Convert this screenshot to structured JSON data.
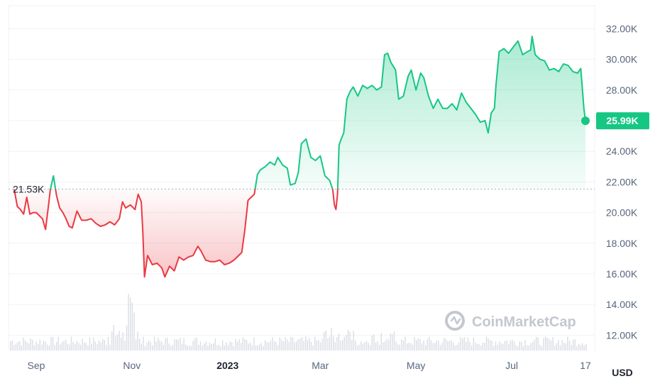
{
  "chart_data": {
    "type": "area",
    "currency": "USD",
    "reference_label": "21.53K",
    "reference_value": 21530,
    "last_label": "25.99K",
    "last_value": 25990,
    "up_color": "#16c784",
    "down_color": "#ea3943",
    "ylim": [
      11000,
      33500
    ],
    "y_ticks": [
      {
        "value": 12000,
        "label": "12.00K"
      },
      {
        "value": 14000,
        "label": "14.00K"
      },
      {
        "value": 16000,
        "label": "16.00K"
      },
      {
        "value": 18000,
        "label": "18.00K"
      },
      {
        "value": 20000,
        "label": "20.00K"
      },
      {
        "value": 22000,
        "label": "22.00K"
      },
      {
        "value": 24000,
        "label": "24.00K"
      },
      {
        "value": 26000,
        "label": "26.00K"
      },
      {
        "value": 28000,
        "label": "28.00K"
      },
      {
        "value": 30000,
        "label": "30.00K"
      },
      {
        "value": 32000,
        "label": "32.00K"
      }
    ],
    "x_ticks": [
      {
        "date": "2022-09-01",
        "label": "Sep",
        "bold": false
      },
      {
        "date": "2022-11-01",
        "label": "Nov",
        "bold": false
      },
      {
        "date": "2023-01-01",
        "label": "2023",
        "bold": true
      },
      {
        "date": "2023-03-01",
        "label": "Mar",
        "bold": false
      },
      {
        "date": "2023-05-01",
        "label": "May",
        "bold": false
      },
      {
        "date": "2023-07-01",
        "label": "Jul",
        "bold": false
      },
      {
        "date": "2023-08-17",
        "label": "17",
        "bold": false
      }
    ],
    "x": [
      "2022-08-18",
      "2022-08-20",
      "2022-08-22",
      "2022-08-24",
      "2022-08-26",
      "2022-08-28",
      "2022-08-30",
      "2022-09-01",
      "2022-09-03",
      "2022-09-05",
      "2022-09-07",
      "2022-09-09",
      "2022-09-10",
      "2022-09-12",
      "2022-09-14",
      "2022-09-16",
      "2022-09-18",
      "2022-09-20",
      "2022-09-22",
      "2022-09-24",
      "2022-09-27",
      "2022-09-30",
      "2022-10-03",
      "2022-10-06",
      "2022-10-09",
      "2022-10-12",
      "2022-10-15",
      "2022-10-18",
      "2022-10-21",
      "2022-10-24",
      "2022-10-26",
      "2022-10-28",
      "2022-10-31",
      "2022-11-03",
      "2022-11-05",
      "2022-11-07",
      "2022-11-08",
      "2022-11-09",
      "2022-11-11",
      "2022-11-14",
      "2022-11-17",
      "2022-11-20",
      "2022-11-22",
      "2022-11-25",
      "2022-11-28",
      "2022-12-01",
      "2022-12-04",
      "2022-12-07",
      "2022-12-10",
      "2022-12-13",
      "2022-12-15",
      "2022-12-18",
      "2022-12-21",
      "2022-12-24",
      "2022-12-27",
      "2022-12-30",
      "2023-01-02",
      "2023-01-05",
      "2023-01-08",
      "2023-01-10",
      "2023-01-12",
      "2023-01-14",
      "2023-01-16",
      "2023-01-18",
      "2023-01-20",
      "2023-01-22",
      "2023-01-25",
      "2023-01-28",
      "2023-01-31",
      "2023-02-02",
      "2023-02-05",
      "2023-02-08",
      "2023-02-10",
      "2023-02-13",
      "2023-02-15",
      "2023-02-17",
      "2023-02-20",
      "2023-02-23",
      "2023-02-26",
      "2023-03-01",
      "2023-03-04",
      "2023-03-07",
      "2023-03-09",
      "2023-03-10",
      "2023-03-11",
      "2023-03-12",
      "2023-03-13",
      "2023-03-14",
      "2023-03-16",
      "2023-03-18",
      "2023-03-20",
      "2023-03-22",
      "2023-03-25",
      "2023-03-28",
      "2023-03-31",
      "2023-04-03",
      "2023-04-06",
      "2023-04-09",
      "2023-04-11",
      "2023-04-13",
      "2023-04-15",
      "2023-04-18",
      "2023-04-20",
      "2023-04-23",
      "2023-04-26",
      "2023-04-28",
      "2023-05-01",
      "2023-05-04",
      "2023-05-06",
      "2023-05-09",
      "2023-05-12",
      "2023-05-15",
      "2023-05-18",
      "2023-05-21",
      "2023-05-24",
      "2023-05-27",
      "2023-05-30",
      "2023-06-02",
      "2023-06-05",
      "2023-06-08",
      "2023-06-11",
      "2023-06-14",
      "2023-06-16",
      "2023-06-18",
      "2023-06-20",
      "2023-06-21",
      "2023-06-23",
      "2023-06-26",
      "2023-06-29",
      "2023-07-02",
      "2023-07-05",
      "2023-07-08",
      "2023-07-11",
      "2023-07-13",
      "2023-07-14",
      "2023-07-16",
      "2023-07-19",
      "2023-07-22",
      "2023-07-25",
      "2023-07-28",
      "2023-07-31",
      "2023-08-03",
      "2023-08-06",
      "2023-08-09",
      "2023-08-12",
      "2023-08-14",
      "2023-08-16",
      "2023-08-17"
    ],
    "values": [
      21530,
      20400,
      20200,
      19900,
      21000,
      19900,
      20000,
      20000,
      19800,
      19600,
      18900,
      20600,
      21500,
      22400,
      21100,
      20300,
      20000,
      19600,
      19100,
      19000,
      20100,
      19500,
      19500,
      19600,
      19300,
      19100,
      19200,
      19400,
      19200,
      19600,
      20700,
      20300,
      20500,
      20200,
      21200,
      20700,
      18700,
      15800,
      17200,
      16600,
      16700,
      16400,
      15800,
      16500,
      16200,
      17100,
      16900,
      17100,
      17200,
      17800,
      17500,
      16900,
      16800,
      16800,
      16900,
      16600,
      16700,
      16900,
      17200,
      17400,
      18900,
      20800,
      21000,
      21200,
      22500,
      22800,
      23000,
      23300,
      23100,
      23600,
      23100,
      22900,
      21800,
      21900,
      22600,
      24500,
      24800,
      23600,
      23400,
      23700,
      22400,
      22100,
      21500,
      20500,
      20200,
      21200,
      24400,
      24700,
      25200,
      27400,
      27900,
      28200,
      27600,
      28300,
      28100,
      28300,
      28000,
      28200,
      30300,
      30400,
      29800,
      29300,
      27400,
      27600,
      28900,
      29300,
      28000,
      29100,
      28800,
      27600,
      26800,
      27400,
      26800,
      26800,
      27100,
      26700,
      27800,
      27200,
      26800,
      26400,
      25900,
      26000,
      25200,
      26500,
      26800,
      28300,
      30500,
      30700,
      30400,
      30800,
      31200,
      30300,
      30500,
      30600,
      31500,
      30300,
      30000,
      29900,
      29300,
      29400,
      29200,
      29700,
      29600,
      29200,
      29100,
      29400,
      26800,
      25990
    ]
  }
}
